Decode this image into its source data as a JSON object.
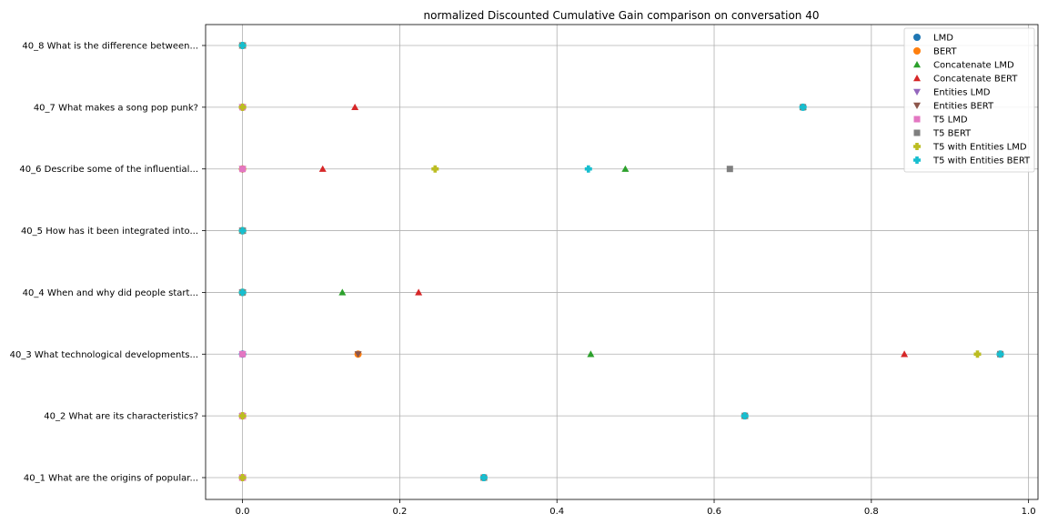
{
  "chart_data": {
    "type": "scatter",
    "title": "normalized Discounted Cumulative Gain comparison on conversation 40",
    "xlabel": "",
    "ylabel": "",
    "xlim": [
      -0.047,
      1.012
    ],
    "xticks": [
      "0.0",
      "0.2",
      "0.4",
      "0.6",
      "0.8",
      "1.0"
    ],
    "xtick_values": [
      0,
      0.2,
      0.4,
      0.6,
      0.8,
      1.0
    ],
    "categories": [
      "40_1 What are the origins of popular...",
      "40_2 What are its characteristics?",
      "40_3 What technological developments...",
      "40_4 When and why did people start...",
      "40_5 How has it been integrated into...",
      "40_6 Describe some of the influential...",
      "40_7 What makes a song pop punk?",
      "40_8 What is the difference between..."
    ],
    "grid": true,
    "legend_position": "top-right",
    "series": [
      {
        "name": "LMD",
        "marker": "circle",
        "color": "#1f77b4",
        "values": [
          0.0,
          0.0,
          0.0,
          0.0,
          0.0,
          0.0,
          0.0,
          0.0
        ]
      },
      {
        "name": "BERT",
        "marker": "circle",
        "color": "#ff7f0e",
        "values": [
          0.0,
          0.0,
          0.147,
          0.0,
          0.0,
          0.0,
          0.0,
          0.0
        ]
      },
      {
        "name": "Concatenate LMD",
        "marker": "triangle-up",
        "color": "#2ca02c",
        "values": [
          0.307,
          0.639,
          0.443,
          0.127,
          0.0,
          0.487,
          0.713,
          0.0
        ]
      },
      {
        "name": "Concatenate BERT",
        "marker": "triangle-up",
        "color": "#d62728",
        "values": [
          0.0,
          0.0,
          0.842,
          0.224,
          0.0,
          0.102,
          0.143,
          0.0
        ]
      },
      {
        "name": "Entities LMD",
        "marker": "triangle-down",
        "color": "#9467bd",
        "values": [
          0.0,
          0.0,
          0.0,
          0.0,
          0.0,
          0.0,
          0.0,
          0.0
        ]
      },
      {
        "name": "Entities BERT",
        "marker": "triangle-down",
        "color": "#8c564b",
        "values": [
          0.0,
          0.0,
          0.147,
          0.0,
          0.0,
          0.0,
          0.0,
          0.0
        ]
      },
      {
        "name": "T5 LMD",
        "marker": "square",
        "color": "#e377c2",
        "values": [
          0.0,
          0.0,
          0.0,
          0.0,
          0.0,
          0.0,
          0.0,
          0.0
        ]
      },
      {
        "name": "T5 BERT",
        "marker": "square",
        "color": "#7f7f7f",
        "values": [
          0.307,
          0.639,
          0.964,
          0.0,
          0.0,
          0.62,
          0.713,
          0.0
        ]
      },
      {
        "name": "T5 with Entities LMD",
        "marker": "plus",
        "color": "#bcbd22",
        "values": [
          0.0,
          0.0,
          0.935,
          0.0,
          0.0,
          0.245,
          0.0,
          0.0
        ]
      },
      {
        "name": "T5 with Entities BERT",
        "marker": "plus",
        "color": "#17becf",
        "values": [
          0.307,
          0.639,
          0.964,
          0.0,
          0.0,
          0.44,
          0.713,
          0.0
        ]
      }
    ]
  }
}
